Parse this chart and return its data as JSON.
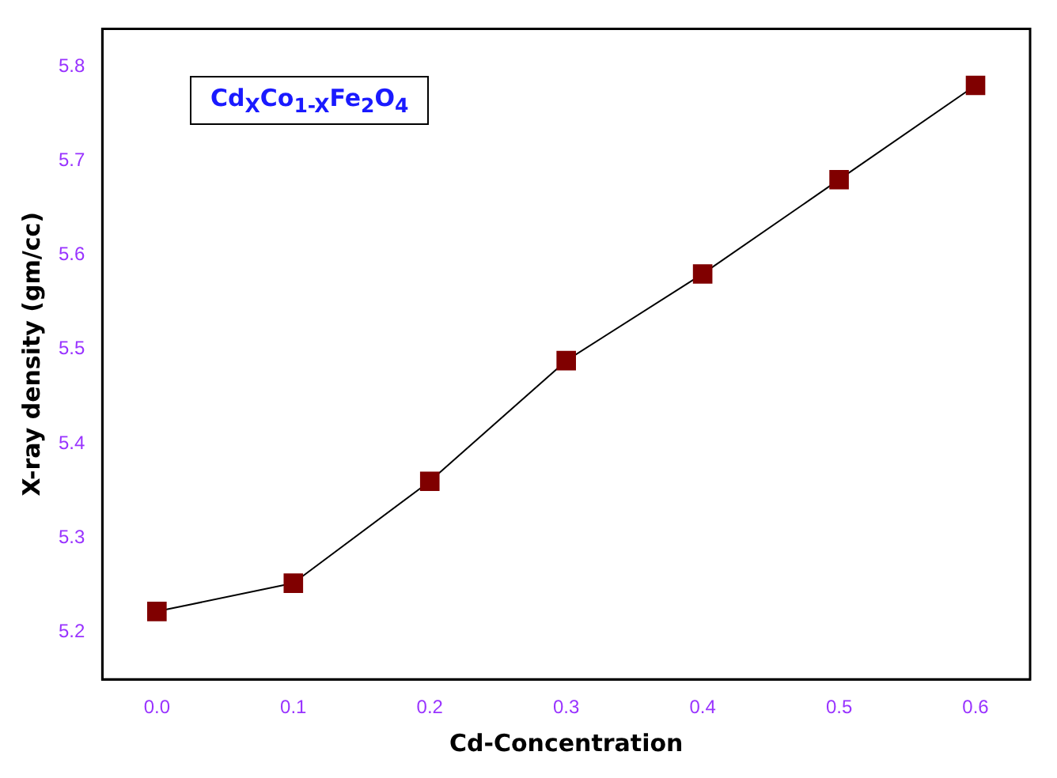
{
  "chart_data": {
    "type": "line",
    "x": [
      0.0,
      0.1,
      0.2,
      0.3,
      0.4,
      0.5,
      0.6
    ],
    "series": [
      {
        "color": "#800000",
        "values": [
          5.222,
          5.252,
          5.36,
          5.488,
          5.58,
          5.68,
          5.78
        ]
      }
    ],
    "xlabel": "Cd-Concentration",
    "ylabel": "X-ray density (gm/cc)",
    "annotations": [
      "Cd$_{X}$Co$_{1-X}$Fe$_{2}$O$_{4}$"
    ],
    "xlim": [
      -0.04,
      0.64
    ],
    "xticks": [
      {
        "value": 0,
        "label": "0.0"
      },
      {
        "value": 0.1,
        "label": "0.1"
      },
      {
        "value": 0.2,
        "label": "0.2"
      },
      {
        "value": 0.3,
        "label": "0.3"
      },
      {
        "value": 0.4,
        "label": "0.4"
      },
      {
        "value": 0.5,
        "label": "0.5"
      },
      {
        "value": 0.6,
        "label": "0.6"
      }
    ],
    "ylim": [
      5.15,
      5.84
    ],
    "yticks": [
      5.2,
      5.3,
      5.4,
      5.5,
      5.6,
      5.7,
      5.8
    ],
    "grid": false,
    "legend": false,
    "marker": "square",
    "line_style": "solid"
  }
}
